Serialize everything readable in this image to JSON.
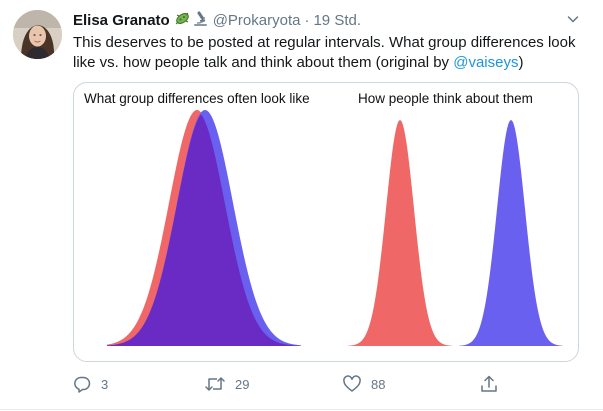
{
  "tweet": {
    "author_name": "Elisa Granato",
    "badges": [
      "bacteria-emoji",
      "microscope-emoji"
    ],
    "handle": "@Prokaryota",
    "separator": "·",
    "timestamp": "19 Std.",
    "text_main": "This deserves to be posted at regular intervals. What group differences look like vs. how people talk and think about them (original by ",
    "mention": "@vaiseys",
    "text_end": ")"
  },
  "image": {
    "left_title": "What group differences often look like",
    "right_title": "How people think about them",
    "colors": {
      "red": "#f06767",
      "blue": "#6a60f0",
      "overlap": "#6a2ac4"
    }
  },
  "actions": {
    "reply": {
      "icon": "reply-icon",
      "count": "3"
    },
    "retweet": {
      "icon": "retweet-icon",
      "count": "29"
    },
    "like": {
      "icon": "heart-icon",
      "count": "88"
    },
    "share": {
      "icon": "share-icon"
    }
  }
}
